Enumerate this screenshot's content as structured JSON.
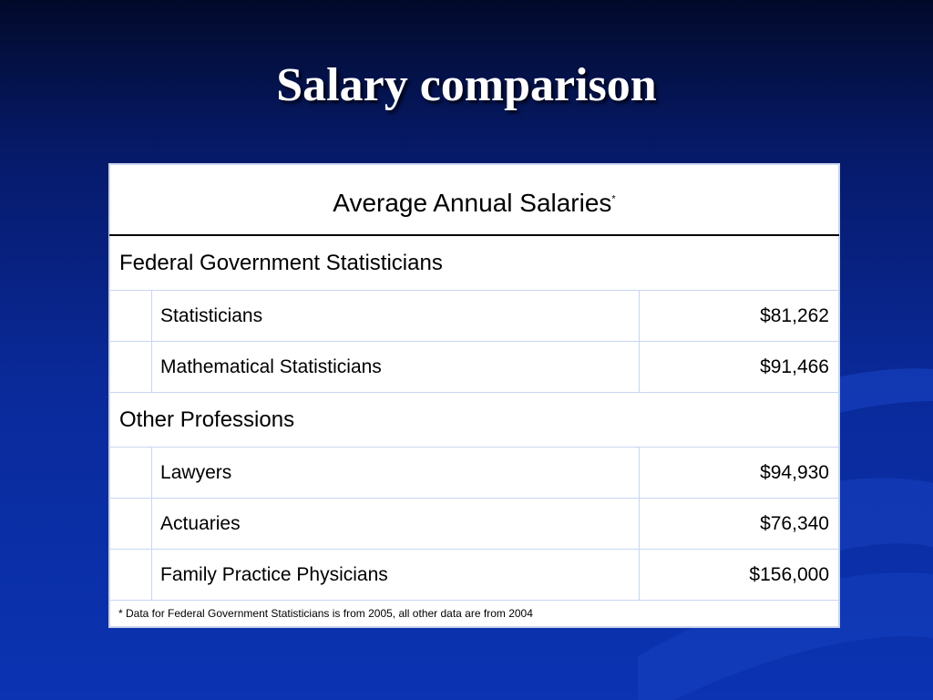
{
  "slide": {
    "title": "Salary comparison"
  },
  "table": {
    "header": "Average Annual Salaries",
    "header_marker": "*",
    "groups": [
      {
        "label": "Federal Government Statisticians",
        "rows": [
          {
            "name": "Statisticians",
            "value": "$81,262"
          },
          {
            "name": "Mathematical Statisticians",
            "value": "$91,466"
          }
        ]
      },
      {
        "label": "Other Professions",
        "rows": [
          {
            "name": "Lawyers",
            "value": "$94,930"
          },
          {
            "name": "Actuaries",
            "value": "$76,340"
          },
          {
            "name": "Family Practice Physicians",
            "value": "$156,000"
          }
        ]
      }
    ],
    "footnote": "* Data for Federal Government Statisticians is from 2005, all other data are from 2004"
  },
  "colors": {
    "background_top": "#020a2a",
    "background_bottom": "#0b33b2",
    "title_text": "#ffffff",
    "table_background": "#ffffff",
    "grid_line": "#c8d6f2"
  }
}
